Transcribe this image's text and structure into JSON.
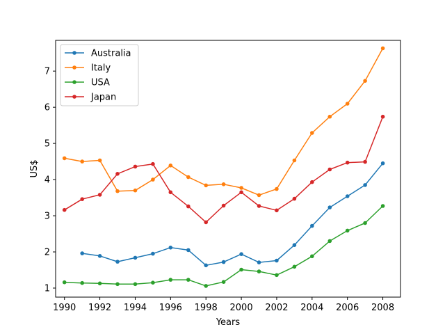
{
  "chart_data": {
    "type": "line",
    "xlabel": "Years",
    "ylabel": "US$",
    "xlim": [
      1989.5,
      2009
    ],
    "ylim": [
      0.75,
      7.85
    ],
    "x_ticks": [
      1990,
      1992,
      1994,
      1996,
      1998,
      2000,
      2002,
      2004,
      2006,
      2008
    ],
    "y_ticks": [
      1,
      2,
      3,
      4,
      5,
      6,
      7
    ],
    "grid": false,
    "legend_position": "top-left",
    "x": [
      1990,
      1991,
      1992,
      1993,
      1994,
      1995,
      1996,
      1997,
      1998,
      1999,
      2000,
      2001,
      2002,
      2003,
      2004,
      2005,
      2006,
      2007,
      2008
    ],
    "series": [
      {
        "name": "Australia",
        "color": "#1f77b4",
        "values": [
          null,
          1.96,
          1.89,
          1.73,
          1.84,
          1.95,
          2.12,
          2.05,
          1.63,
          1.72,
          1.94,
          1.71,
          1.76,
          2.19,
          2.72,
          3.23,
          3.54,
          3.85,
          4.45
        ]
      },
      {
        "name": "Italy",
        "color": "#ff7f0e",
        "values": [
          4.59,
          4.5,
          4.53,
          3.68,
          3.7,
          4.0,
          4.39,
          4.07,
          3.84,
          3.87,
          3.77,
          3.57,
          3.74,
          4.53,
          5.29,
          5.74,
          6.1,
          6.73,
          7.63
        ]
      },
      {
        "name": "USA",
        "color": "#2ca02c",
        "values": [
          1.16,
          1.14,
          1.13,
          1.11,
          1.11,
          1.15,
          1.23,
          1.23,
          1.06,
          1.17,
          1.51,
          1.46,
          1.36,
          1.59,
          1.88,
          2.3,
          2.59,
          2.8,
          3.27
        ]
      },
      {
        "name": "Japan",
        "color": "#d62728",
        "values": [
          3.16,
          3.46,
          3.58,
          4.16,
          4.36,
          4.43,
          3.65,
          3.26,
          2.82,
          3.28,
          3.65,
          3.27,
          3.15,
          3.47,
          3.93,
          4.28,
          4.47,
          4.49,
          5.74
        ]
      }
    ]
  }
}
